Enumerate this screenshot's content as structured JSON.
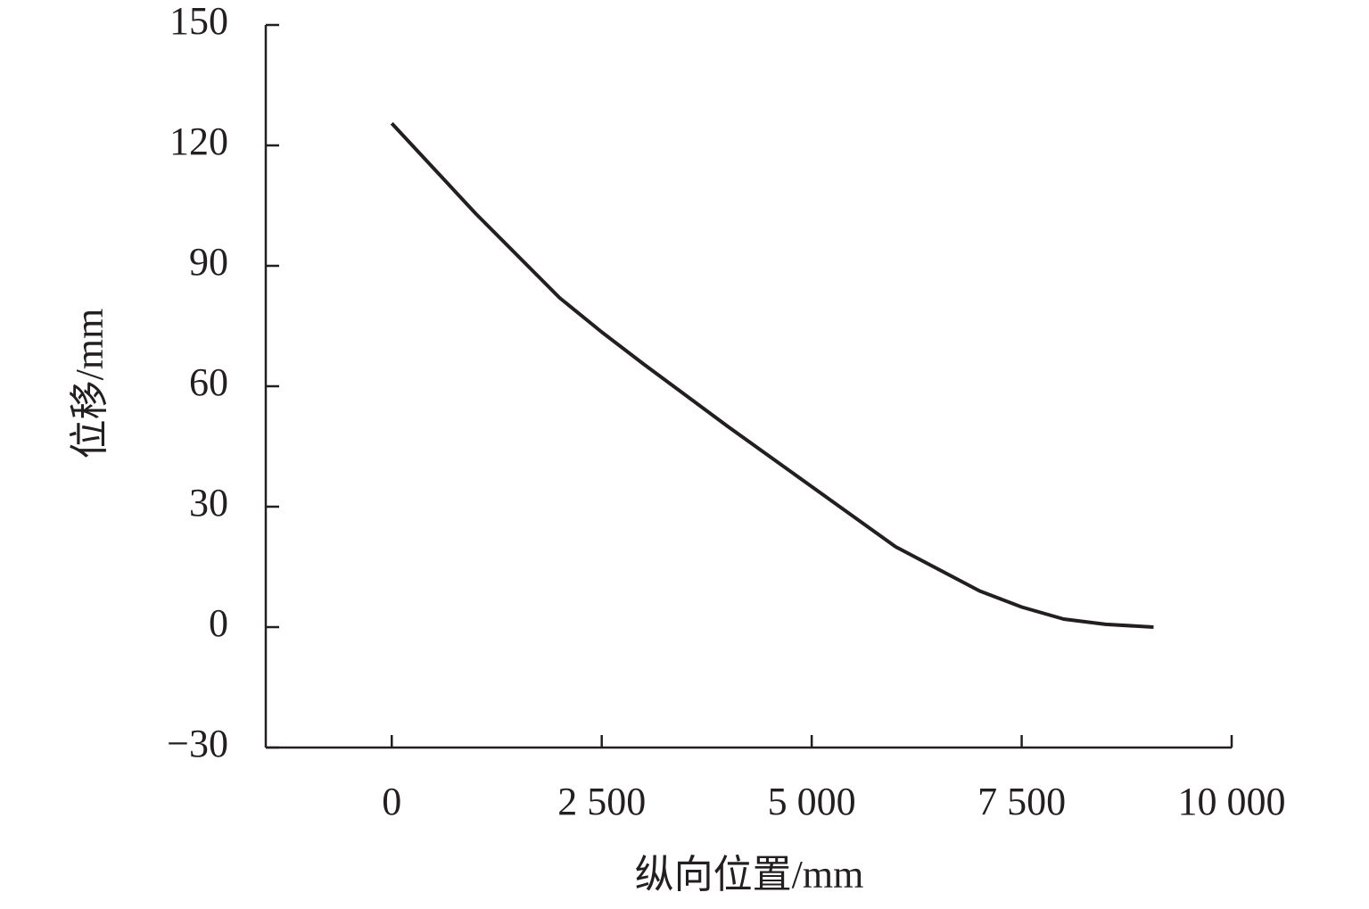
{
  "chart_data": {
    "type": "line",
    "x_label": "纵向位置/mm",
    "y_label": "位移/mm",
    "x": [
      0,
      1000,
      2000,
      2500,
      3000,
      4000,
      5000,
      6000,
      7000,
      7500,
      8000,
      8500,
      9070
    ],
    "series": [
      {
        "color": "#231f20",
        "values": [
          125.5,
          103,
          82,
          73.5,
          65.5,
          50,
          35,
          20,
          9,
          5,
          2,
          0.7,
          0
        ]
      }
    ],
    "xlim": [
      -1500,
      10000
    ],
    "xticks": [
      0,
      {
        "value": 2500,
        "label": "2 500"
      },
      {
        "value": 5000,
        "label": "5 000"
      },
      {
        "value": 7500,
        "label": "7 500"
      },
      {
        "value": 10000,
        "label": "10 000"
      }
    ],
    "ylim": [
      -30,
      150
    ],
    "yticks": [
      {
        "value": -30,
        "label": "−30"
      },
      0,
      30,
      60,
      90,
      120,
      150
    ]
  }
}
